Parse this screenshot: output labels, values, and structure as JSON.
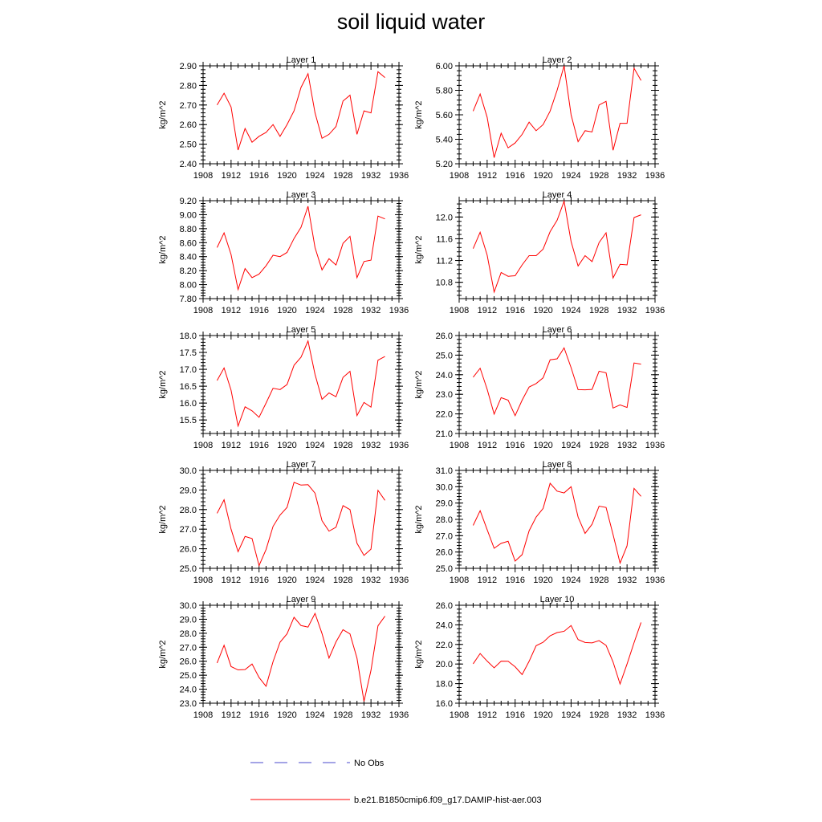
{
  "title": "soil liquid water",
  "legend": {
    "items": [
      {
        "label": "No Obs",
        "style": "dashed",
        "color": "#4a4acc"
      },
      {
        "label": "b.e21.B1850cmip6.f09_g17.DAMIP-hist-aer.003",
        "style": "solid",
        "color": "#ff0000"
      }
    ]
  },
  "colors": {
    "series": "#ff0000",
    "axis": "#000000"
  },
  "chart_data": [
    {
      "type": "line",
      "title": "Layer 1",
      "ylabel": "kg/m^2",
      "xlim": [
        1908,
        1936
      ],
      "xticks": [
        1908,
        1912,
        1916,
        1920,
        1924,
        1928,
        1932,
        1936
      ],
      "ylim": [
        2.4,
        2.9
      ],
      "yticks": [
        2.4,
        2.5,
        2.6,
        2.7,
        2.8,
        2.9
      ],
      "ytick_labels": [
        "2.40",
        "2.50",
        "2.60",
        "2.70",
        "2.80",
        "2.90"
      ],
      "x": [
        1910,
        1911,
        1912,
        1913,
        1914,
        1915,
        1916,
        1917,
        1918,
        1919,
        1920,
        1921,
        1922,
        1923,
        1924,
        1925,
        1926,
        1927,
        1928,
        1929,
        1930,
        1931,
        1932,
        1933,
        1934
      ],
      "y": [
        2.7,
        2.76,
        2.69,
        2.47,
        2.58,
        2.51,
        2.54,
        2.56,
        2.6,
        2.54,
        2.6,
        2.67,
        2.79,
        2.86,
        2.66,
        2.53,
        2.55,
        2.59,
        2.72,
        2.75,
        2.55,
        2.67,
        2.66,
        2.87,
        2.84
      ]
    },
    {
      "type": "line",
      "title": "Layer 2",
      "ylabel": "kg/m^2",
      "xlim": [
        1908,
        1936
      ],
      "xticks": [
        1908,
        1912,
        1916,
        1920,
        1924,
        1928,
        1932,
        1936
      ],
      "ylim": [
        5.2,
        6.0
      ],
      "yticks": [
        5.2,
        5.4,
        5.6,
        5.8,
        6.0
      ],
      "ytick_labels": [
        "5.20",
        "5.40",
        "5.60",
        "5.80",
        "6.00"
      ],
      "x": [
        1910,
        1911,
        1912,
        1913,
        1914,
        1915,
        1916,
        1917,
        1918,
        1919,
        1920,
        1921,
        1922,
        1923,
        1924,
        1925,
        1926,
        1927,
        1928,
        1929,
        1930,
        1931,
        1932,
        1933,
        1934
      ],
      "y": [
        5.63,
        5.77,
        5.58,
        5.25,
        5.45,
        5.33,
        5.37,
        5.44,
        5.54,
        5.47,
        5.52,
        5.63,
        5.8,
        6.0,
        5.6,
        5.38,
        5.47,
        5.46,
        5.68,
        5.71,
        5.31,
        5.53,
        5.53,
        5.98,
        5.88
      ]
    },
    {
      "type": "line",
      "title": "Layer 3",
      "ylabel": "kg/m^2",
      "xlim": [
        1908,
        1936
      ],
      "xticks": [
        1908,
        1912,
        1916,
        1920,
        1924,
        1928,
        1932,
        1936
      ],
      "ylim": [
        7.8,
        9.2
      ],
      "yticks": [
        7.8,
        8.0,
        8.2,
        8.4,
        8.6,
        8.8,
        9.0,
        9.2
      ],
      "ytick_labels": [
        "7.80",
        "8.00",
        "8.20",
        "8.40",
        "8.60",
        "8.80",
        "9.00",
        "9.20"
      ],
      "x": [
        1910,
        1911,
        1912,
        1913,
        1914,
        1915,
        1916,
        1917,
        1918,
        1919,
        1920,
        1921,
        1922,
        1923,
        1924,
        1925,
        1926,
        1927,
        1928,
        1929,
        1930,
        1931,
        1932,
        1933,
        1934
      ],
      "y": [
        8.53,
        8.74,
        8.43,
        7.93,
        8.23,
        8.1,
        8.15,
        8.27,
        8.42,
        8.4,
        8.46,
        8.66,
        8.82,
        9.12,
        8.53,
        8.21,
        8.37,
        8.28,
        8.59,
        8.69,
        8.1,
        8.33,
        8.35,
        8.98,
        8.94
      ]
    },
    {
      "type": "line",
      "title": "Layer 4",
      "ylabel": "kg/m^2",
      "xlim": [
        1908,
        1936
      ],
      "xticks": [
        1908,
        1912,
        1916,
        1920,
        1924,
        1928,
        1932,
        1936
      ],
      "ylim": [
        10.5,
        12.3
      ],
      "yticks": [
        10.8,
        11.2,
        11.6,
        12.0
      ],
      "ytick_labels": [
        "10.8",
        "11.2",
        "11.6",
        "12.0"
      ],
      "x": [
        1910,
        1911,
        1912,
        1913,
        1914,
        1915,
        1916,
        1917,
        1918,
        1919,
        1920,
        1921,
        1922,
        1923,
        1924,
        1925,
        1926,
        1927,
        1928,
        1929,
        1930,
        1931,
        1932,
        1933,
        1934
      ],
      "y": [
        11.42,
        11.72,
        11.3,
        10.62,
        10.98,
        10.91,
        10.92,
        11.12,
        11.29,
        11.29,
        11.41,
        11.73,
        11.94,
        12.29,
        11.55,
        11.1,
        11.29,
        11.18,
        11.53,
        11.71,
        10.88,
        11.13,
        11.12,
        11.99,
        12.04
      ]
    },
    {
      "type": "line",
      "title": "Layer 5",
      "ylabel": "kg/m^2",
      "xlim": [
        1908,
        1936
      ],
      "xticks": [
        1908,
        1912,
        1916,
        1920,
        1924,
        1928,
        1932,
        1936
      ],
      "ylim": [
        15.1,
        18.0
      ],
      "yticks": [
        15.5,
        16.0,
        16.5,
        17.0,
        17.5,
        18.0
      ],
      "ytick_labels": [
        "15.5",
        "16.0",
        "16.5",
        "17.0",
        "17.5",
        "18.0"
      ],
      "x": [
        1910,
        1911,
        1912,
        1913,
        1914,
        1915,
        1916,
        1917,
        1918,
        1919,
        1920,
        1921,
        1922,
        1923,
        1924,
        1925,
        1926,
        1927,
        1928,
        1929,
        1930,
        1931,
        1932,
        1933,
        1934
      ],
      "y": [
        16.67,
        17.04,
        16.38,
        15.32,
        15.89,
        15.77,
        15.58,
        16.0,
        16.44,
        16.4,
        16.55,
        17.12,
        17.36,
        17.84,
        16.85,
        16.11,
        16.3,
        16.19,
        16.76,
        16.94,
        15.63,
        16.02,
        15.88,
        17.27,
        17.38
      ]
    },
    {
      "type": "line",
      "title": "Layer 6",
      "ylabel": "kg/m^2",
      "xlim": [
        1908,
        1936
      ],
      "xticks": [
        1908,
        1912,
        1916,
        1920,
        1924,
        1928,
        1932,
        1936
      ],
      "ylim": [
        21.0,
        26.0
      ],
      "yticks": [
        21.0,
        22.0,
        23.0,
        24.0,
        25.0,
        26.0
      ],
      "ytick_labels": [
        "21.0",
        "22.0",
        "23.0",
        "24.0",
        "25.0",
        "26.0"
      ],
      "x": [
        1910,
        1911,
        1912,
        1913,
        1914,
        1915,
        1916,
        1917,
        1918,
        1919,
        1920,
        1921,
        1922,
        1923,
        1924,
        1925,
        1926,
        1927,
        1928,
        1929,
        1930,
        1931,
        1932,
        1933,
        1934
      ],
      "y": [
        23.87,
        24.33,
        23.26,
        21.99,
        22.83,
        22.7,
        21.91,
        22.7,
        23.37,
        23.55,
        23.84,
        24.76,
        24.81,
        25.37,
        24.36,
        23.24,
        23.23,
        23.25,
        24.18,
        24.1,
        22.3,
        22.46,
        22.33,
        24.6,
        24.54
      ]
    },
    {
      "type": "line",
      "title": "Layer 7",
      "ylabel": "kg/m^2",
      "xlim": [
        1908,
        1936
      ],
      "xticks": [
        1908,
        1912,
        1916,
        1920,
        1924,
        1928,
        1932,
        1936
      ],
      "ylim": [
        25.0,
        30.0
      ],
      "yticks": [
        25.0,
        26.0,
        27.0,
        28.0,
        29.0,
        30.0
      ],
      "ytick_labels": [
        "25.0",
        "26.0",
        "27.0",
        "28.0",
        "29.0",
        "30.0"
      ],
      "x": [
        1910,
        1911,
        1912,
        1913,
        1914,
        1915,
        1916,
        1917,
        1918,
        1919,
        1920,
        1921,
        1922,
        1923,
        1924,
        1925,
        1926,
        1927,
        1928,
        1929,
        1930,
        1931,
        1932,
        1933,
        1934
      ],
      "y": [
        27.81,
        28.5,
        27.0,
        25.85,
        26.63,
        26.52,
        25.14,
        25.96,
        27.14,
        27.72,
        28.11,
        29.39,
        29.25,
        29.27,
        28.84,
        27.43,
        26.9,
        27.1,
        28.2,
        28.0,
        26.28,
        25.66,
        25.98,
        28.98,
        28.47
      ]
    },
    {
      "type": "line",
      "title": "Layer 8",
      "ylabel": "kg/m^2",
      "xlim": [
        1908,
        1936
      ],
      "xticks": [
        1908,
        1912,
        1916,
        1920,
        1924,
        1928,
        1932,
        1936
      ],
      "ylim": [
        25.0,
        31.0
      ],
      "yticks": [
        25.0,
        26.0,
        27.0,
        28.0,
        29.0,
        30.0,
        31.0
      ],
      "ytick_labels": [
        "25.0",
        "26.0",
        "27.0",
        "28.0",
        "29.0",
        "30.0",
        "31.0"
      ],
      "x": [
        1910,
        1911,
        1912,
        1913,
        1914,
        1915,
        1916,
        1917,
        1918,
        1919,
        1920,
        1921,
        1922,
        1923,
        1924,
        1925,
        1926,
        1927,
        1928,
        1929,
        1930,
        1931,
        1932,
        1933,
        1934
      ],
      "y": [
        27.63,
        28.53,
        27.37,
        26.23,
        26.53,
        26.66,
        25.44,
        25.84,
        27.3,
        28.14,
        28.67,
        30.21,
        29.73,
        29.62,
        30.0,
        28.14,
        27.14,
        27.7,
        28.81,
        28.73,
        27.07,
        25.32,
        26.38,
        29.9,
        29.41
      ]
    },
    {
      "type": "line",
      "title": "Layer 9",
      "ylabel": "kg/m^2",
      "xlim": [
        1908,
        1936
      ],
      "xticks": [
        1908,
        1912,
        1916,
        1920,
        1924,
        1928,
        1932,
        1936
      ],
      "ylim": [
        23.0,
        30.0
      ],
      "yticks": [
        23.0,
        24.0,
        25.0,
        26.0,
        27.0,
        28.0,
        29.0,
        30.0
      ],
      "ytick_labels": [
        "23.0",
        "24.0",
        "25.0",
        "26.0",
        "27.0",
        "28.0",
        "29.0",
        "30.0"
      ],
      "x": [
        1910,
        1911,
        1912,
        1913,
        1914,
        1915,
        1916,
        1917,
        1918,
        1919,
        1920,
        1921,
        1922,
        1923,
        1924,
        1925,
        1926,
        1927,
        1928,
        1929,
        1930,
        1931,
        1932,
        1933,
        1934
      ],
      "y": [
        25.87,
        27.14,
        25.62,
        25.38,
        25.4,
        25.8,
        24.84,
        24.21,
        25.97,
        27.36,
        27.96,
        29.14,
        28.55,
        28.44,
        29.42,
        27.98,
        26.23,
        27.38,
        28.25,
        27.95,
        26.22,
        23.13,
        25.35,
        28.53,
        29.22
      ]
    },
    {
      "type": "line",
      "title": "Layer 10",
      "ylabel": "kg/m^2",
      "xlim": [
        1908,
        1936
      ],
      "xticks": [
        1908,
        1912,
        1916,
        1920,
        1924,
        1928,
        1932,
        1936
      ],
      "ylim": [
        16.0,
        26.0
      ],
      "yticks": [
        16.0,
        18.0,
        20.0,
        22.0,
        24.0,
        26.0
      ],
      "ytick_labels": [
        "16.0",
        "18.0",
        "20.0",
        "22.0",
        "24.0",
        "26.0"
      ],
      "x": [
        1910,
        1911,
        1912,
        1913,
        1914,
        1915,
        1916,
        1917,
        1918,
        1919,
        1920,
        1921,
        1922,
        1923,
        1924,
        1925,
        1926,
        1927,
        1928,
        1929,
        1930,
        1931,
        1932,
        1933,
        1934
      ],
      "y": [
        20.02,
        21.07,
        20.3,
        19.61,
        20.29,
        20.28,
        19.72,
        18.92,
        20.28,
        21.87,
        22.22,
        22.88,
        23.21,
        23.34,
        23.93,
        22.5,
        22.2,
        22.16,
        22.39,
        21.91,
        20.21,
        17.96,
        20.0,
        22.18,
        24.24
      ]
    }
  ]
}
